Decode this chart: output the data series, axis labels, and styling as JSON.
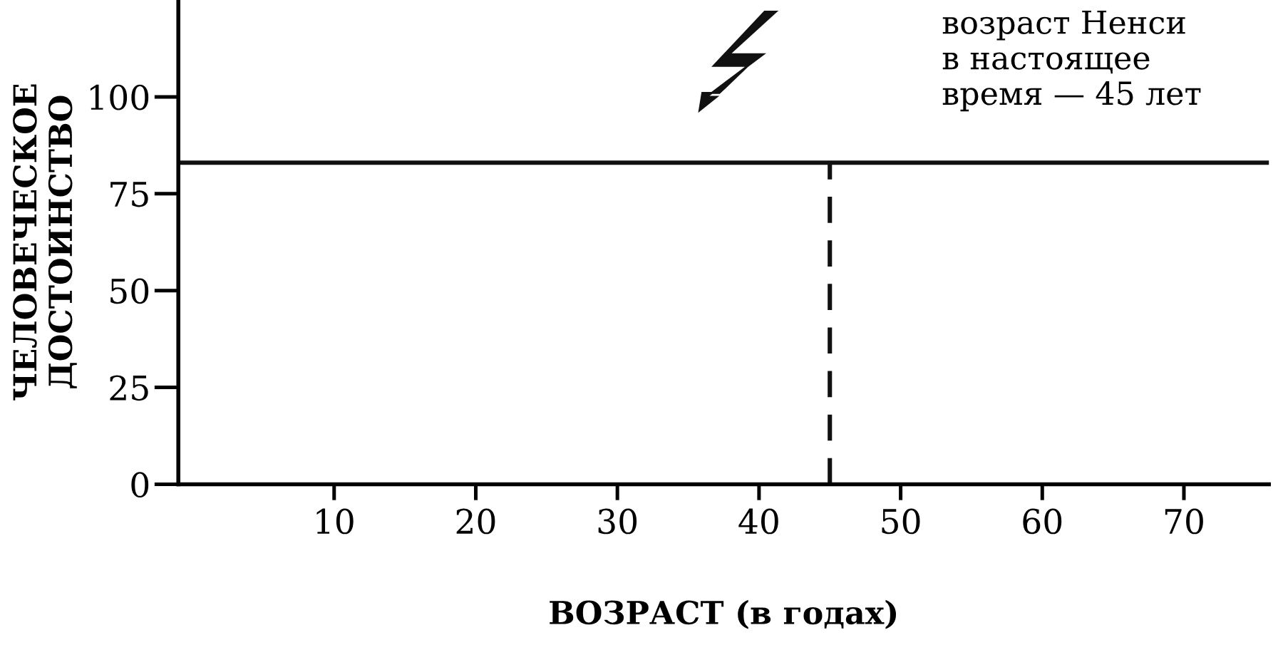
{
  "chart_data": {
    "type": "line",
    "xlabel": "ВОЗРАСТ (в годах)",
    "ylabel": "ЧЕЛОВЕЧЕСКОЕ\nДОСТОИНСТВО",
    "xlim": [
      -1,
      76
    ],
    "ylim": [
      0,
      125
    ],
    "xticks": [
      10,
      20,
      30,
      40,
      50,
      60,
      70
    ],
    "yticks": [
      0,
      25,
      50,
      75,
      100
    ],
    "series": [
      {
        "color": "#111111",
        "x": [
          -1,
          76
        ],
        "values": [
          83,
          83
        ],
        "line_style": "solid"
      },
      {
        "color": "#111111",
        "x": [
          45,
          45
        ],
        "values": [
          0,
          83
        ],
        "line_style": "dashed"
      }
    ],
    "annotations": [
      "возраст Ненси\nв настоящее\nвремя — 45 лет"
    ],
    "grid": false,
    "legend": false,
    "marker": "none"
  }
}
